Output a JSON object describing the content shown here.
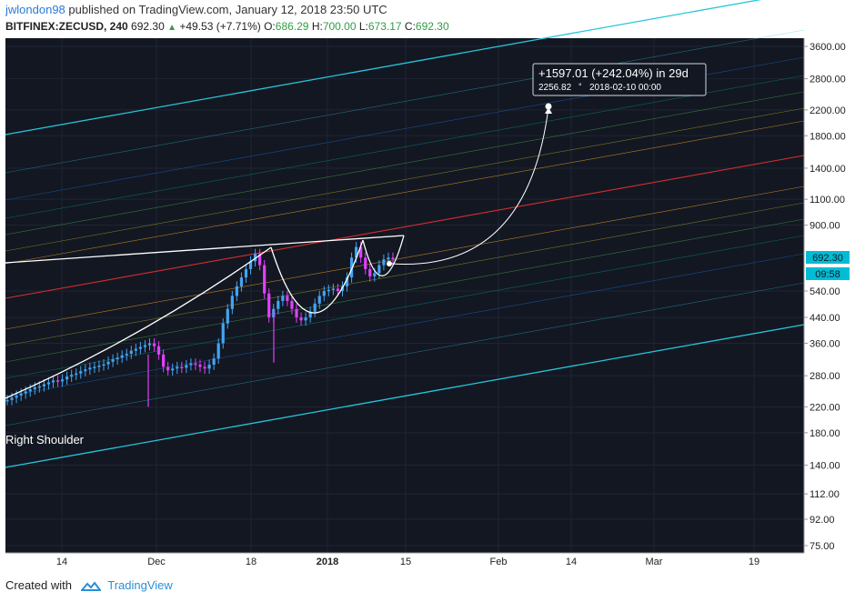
{
  "header": {
    "author": "jwlondon98",
    "published_text": "published on TradingView.com, January 12, 2018 23:50 UTC",
    "symbol": "BITFINEX:ZECUSD, 240",
    "last": "692.30",
    "change": "+49.53 (+7.71%)",
    "o_label": "O:",
    "o_val": "686.29",
    "h_label": "H:",
    "h_val": "700.00",
    "l_label": "L:",
    "l_val": "673.17",
    "c_label": "C:",
    "c_val": "692.30"
  },
  "footer": {
    "created_with": "Created with",
    "brand": "TradingView"
  },
  "colors": {
    "background": "#131722",
    "up_candle": "#42a5f5",
    "down_candle": "#e040fb",
    "channel_outer": "#26c6da",
    "channel_mid": "#d32f2f",
    "pattern_line": "#ffffff"
  },
  "chart_data": {
    "type": "line",
    "scale": "log",
    "symbol": "BITFINEX:ZECUSD",
    "interval": "240",
    "y_ticks": [
      "3600.00",
      "2800.00",
      "2200.00",
      "1800.00",
      "1400.00",
      "1100.00",
      "900.00",
      "692.30",
      "540.00",
      "440.00",
      "360.00",
      "280.00",
      "220.00",
      "180.00",
      "140.00",
      "112.00",
      "92.00",
      "75.00"
    ],
    "y_tick_values": [
      3600,
      2800,
      2200,
      1800,
      1400,
      1100,
      900,
      540,
      440,
      360,
      280,
      220,
      180,
      140,
      112,
      92,
      75
    ],
    "ylim": [
      70,
      4000
    ],
    "x_ticks": [
      "14",
      "Dec",
      "18",
      "2018",
      "15",
      "Feb",
      "14",
      "Mar",
      "19"
    ],
    "price_label": "692.30",
    "time_label": "09:58",
    "annotation_text": "Right Shoulder",
    "projection": {
      "line1": "+1597.01 (+242.04%) in 29d",
      "line2_value": "2256.82",
      "line2_date": "2018-02-10  00:00"
    },
    "series": [
      {
        "values": [
          232,
          236,
          240,
          244,
          248,
          252,
          256,
          258,
          262,
          266,
          270,
          268,
          272,
          278,
          282,
          285,
          290,
          294,
          298,
          300,
          303,
          306,
          312,
          318,
          322,
          328,
          332,
          340,
          345,
          350,
          355,
          360,
          352,
          330,
          300,
          292,
          296,
          300,
          298,
          304,
          308,
          305,
          300,
          296,
          305,
          320,
          360,
          420,
          470,
          520,
          560,
          600,
          640,
          680,
          720,
          660,
          530,
          440,
          470,
          500,
          520,
          500,
          470,
          440,
          430,
          440,
          460,
          490,
          520,
          540,
          545,
          550,
          540,
          560,
          600,
          700,
          760,
          700,
          640,
          605,
          620,
          660,
          690,
          700,
          692
        ]
      }
    ]
  }
}
